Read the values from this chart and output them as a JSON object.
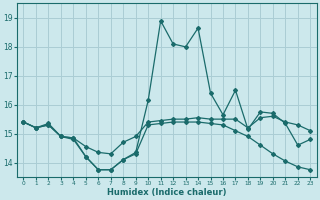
{
  "xlabel": "Humidex (Indice chaleur)",
  "bg_color": "#cce8ec",
  "grid_color": "#aacdd4",
  "line_color": "#1a6b6b",
  "xlim": [
    -0.5,
    23.5
  ],
  "ylim": [
    13.5,
    19.5
  ],
  "yticks": [
    14,
    15,
    16,
    17,
    18,
    19
  ],
  "xticks": [
    0,
    1,
    2,
    3,
    4,
    5,
    6,
    7,
    8,
    9,
    10,
    11,
    12,
    13,
    14,
    15,
    16,
    17,
    18,
    19,
    20,
    21,
    22,
    23
  ],
  "line_top_x": [
    0,
    1,
    2,
    3,
    4,
    5,
    6,
    7,
    8,
    9,
    10,
    11,
    12,
    13,
    14,
    15,
    16,
    17,
    18,
    19,
    20,
    21,
    22,
    23
  ],
  "line_top_y": [
    15.4,
    15.2,
    15.3,
    14.9,
    14.85,
    14.2,
    13.75,
    13.75,
    14.1,
    14.35,
    16.15,
    18.9,
    18.1,
    18.0,
    18.65,
    16.4,
    15.65,
    16.5,
    15.15,
    15.75,
    15.7,
    15.35,
    14.6,
    14.8
  ],
  "line_mid_x": [
    0,
    1,
    2,
    3,
    4,
    5,
    6,
    7,
    8,
    9,
    10,
    11,
    12,
    13,
    14,
    15,
    16,
    17,
    18,
    19,
    20,
    21,
    22,
    23
  ],
  "line_mid_y": [
    15.4,
    15.2,
    15.35,
    14.9,
    14.85,
    14.55,
    14.35,
    14.3,
    14.7,
    14.9,
    15.4,
    15.45,
    15.5,
    15.5,
    15.55,
    15.5,
    15.5,
    15.5,
    15.2,
    15.55,
    15.6,
    15.4,
    15.3,
    15.1
  ],
  "line_bot_x": [
    0,
    1,
    2,
    3,
    4,
    5,
    6,
    7,
    8,
    9,
    10,
    11,
    12,
    13,
    14,
    15,
    16,
    17,
    18,
    19,
    20,
    21,
    22,
    23
  ],
  "line_bot_y": [
    15.4,
    15.2,
    15.3,
    14.9,
    14.8,
    14.2,
    13.75,
    13.75,
    14.1,
    14.3,
    15.3,
    15.35,
    15.4,
    15.4,
    15.4,
    15.35,
    15.3,
    15.1,
    14.9,
    14.6,
    14.3,
    14.05,
    13.85,
    13.75
  ]
}
